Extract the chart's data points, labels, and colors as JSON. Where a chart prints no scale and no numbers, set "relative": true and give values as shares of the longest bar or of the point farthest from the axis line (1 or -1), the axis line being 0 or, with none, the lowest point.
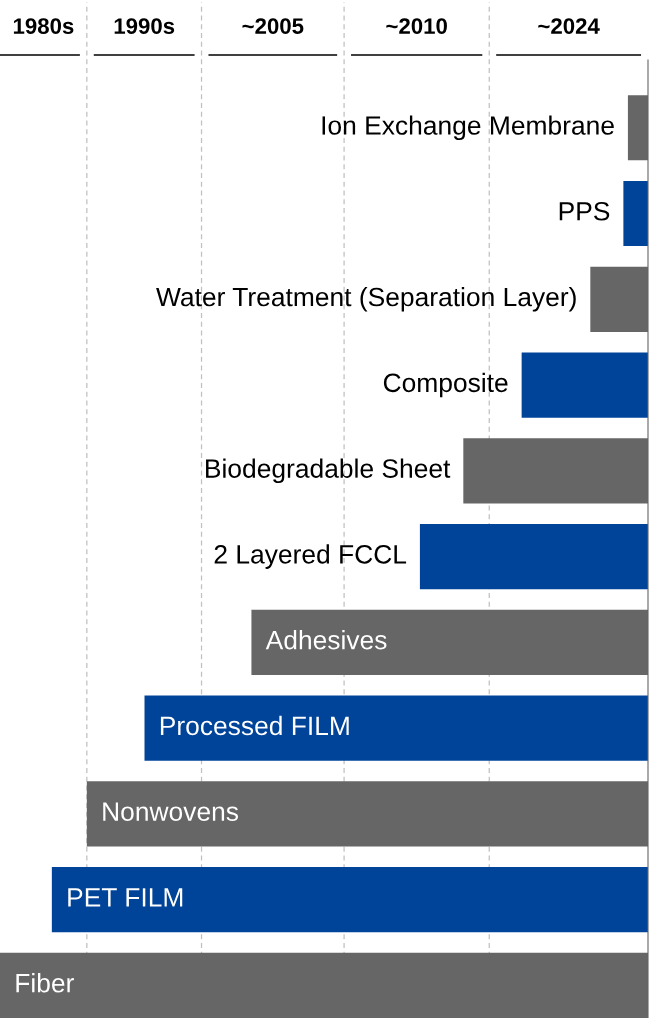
{
  "chart_data": {
    "type": "bar",
    "orientation": "horizontal",
    "relative": true,
    "categories": [
      "Ion Exchange Membrane",
      "PPS",
      "Water Treatment (Separation Layer)",
      "Composite",
      "Biodegradable Sheet",
      "2 Layered FCCL",
      "Adhesives",
      "Processed FILM",
      "Nonwovens",
      "PET FILM",
      "Fiber"
    ],
    "values": [
      0.031,
      0.038,
      0.089,
      0.195,
      0.285,
      0.352,
      0.612,
      0.777,
      0.866,
      0.92,
      1
    ],
    "colors": [
      "#666666",
      "#00449a",
      "#666666",
      "#00449a",
      "#666666",
      "#00449a",
      "#666666",
      "#00449a",
      "#666666",
      "#00449a",
      "#666666"
    ],
    "ref_lines": [
      {
        "axis": "x",
        "value": 0.866,
        "line_style": "dashed",
        "color": "#c0c0c0"
      },
      {
        "axis": "x",
        "value": 0.689,
        "line_style": "dashed",
        "color": "#c0c0c0"
      },
      {
        "axis": "x",
        "value": 0.469,
        "line_style": "dashed",
        "color": "#c0c0c0"
      },
      {
        "axis": "x",
        "value": 0.245,
        "line_style": "dashed",
        "color": "#c0c0c0"
      }
    ],
    "annotations": [
      "1980s",
      "1990s",
      "~2005",
      "~2010",
      "~2024"
    ]
  }
}
